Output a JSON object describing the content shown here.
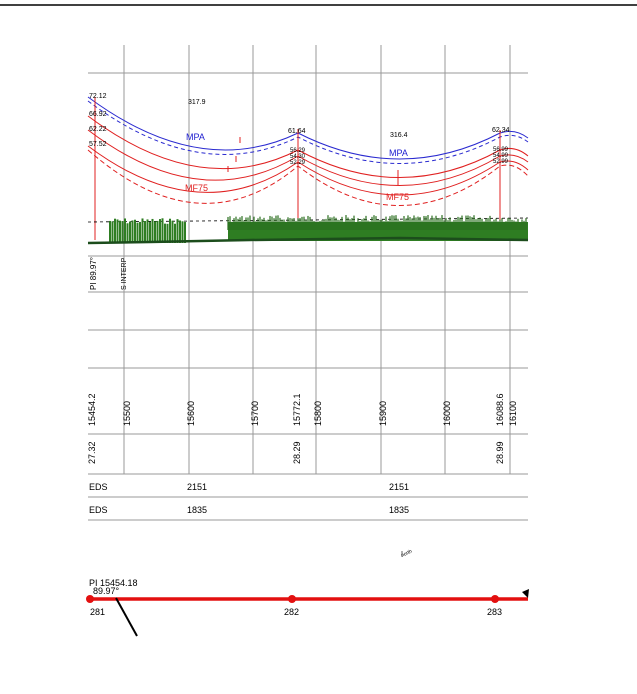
{
  "profile": {
    "left_heights": [
      "72.12",
      "66.92",
      "62.22",
      "57.52"
    ],
    "spans": [
      {
        "length": "317.9",
        "upper": "MPA",
        "lower": "MF75"
      },
      {
        "length": "316.4",
        "upper": "MPA",
        "lower": "MF75"
      }
    ],
    "structures": [
      {
        "heights": [
          "61.64",
          "56.29",
          "54.30",
          "52.29"
        ]
      },
      {
        "heights": [
          "62.34",
          "56.99",
          "54.99",
          "52.99"
        ]
      }
    ],
    "vertical_labels": [
      "PI 89.97°",
      "S INTERP"
    ]
  },
  "stations": [
    "15454.2",
    "15500",
    "15600",
    "15700",
    "15772.1",
    "15800",
    "15900",
    "16000",
    "16088.6",
    "16100"
  ],
  "ground_elevations": [
    "27.32",
    "28.29",
    "28.99"
  ],
  "rows": [
    {
      "label": "EDS",
      "values": [
        "2151",
        "2151"
      ]
    },
    {
      "label": "EDS",
      "values": [
        "1835",
        "1835"
      ]
    }
  ],
  "north": "north",
  "plan": {
    "pi_label": "PI 15454.18",
    "angle": "89.97°",
    "poles": [
      "281",
      "282",
      "283"
    ]
  }
}
